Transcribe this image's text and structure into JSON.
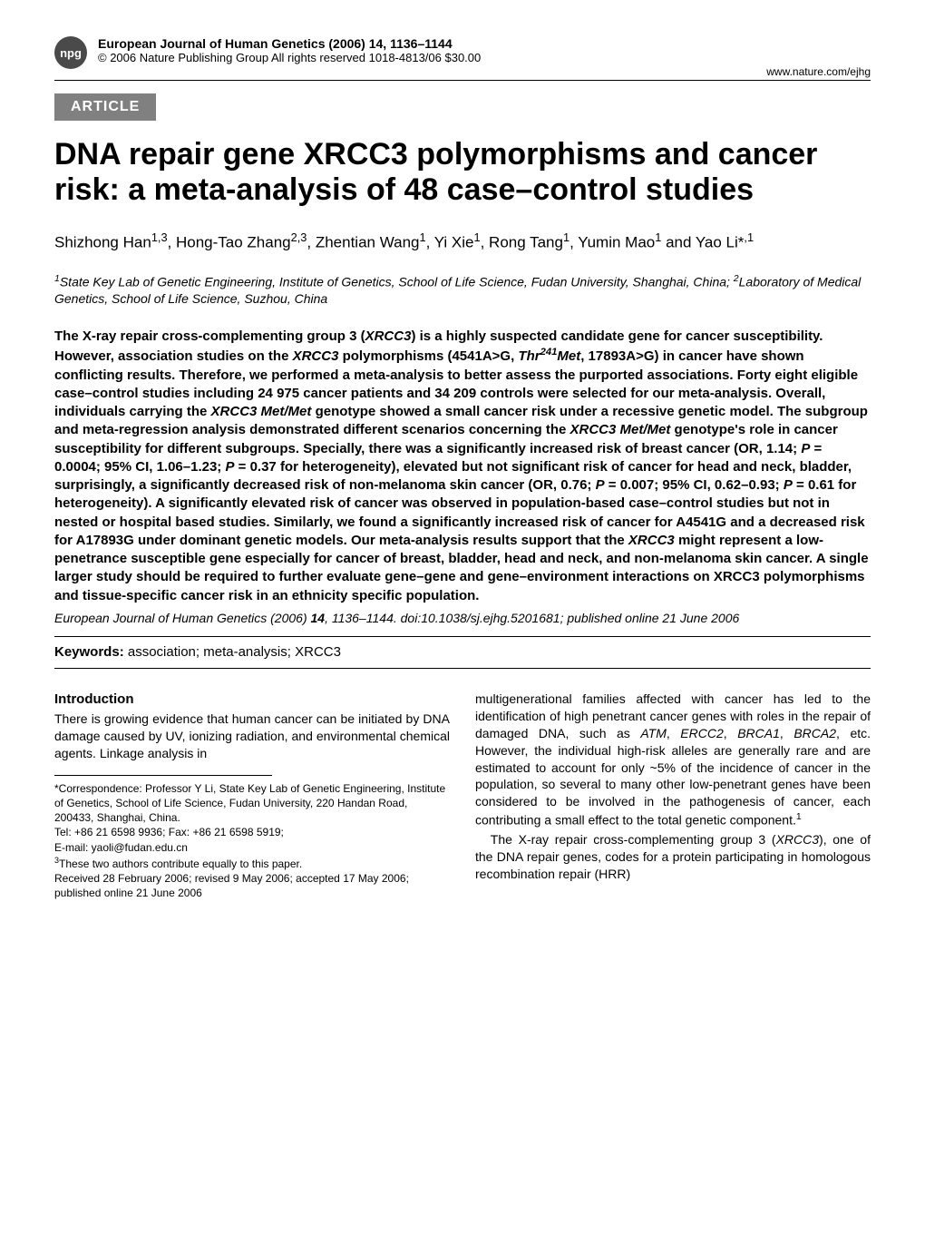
{
  "header": {
    "badge": "npg",
    "journal_line1": "European Journal of Human Genetics (2006) 14, 1136–1144",
    "journal_line2": "© 2006 Nature Publishing Group   All rights reserved 1018-4813/06 $30.00",
    "url": "www.nature.com/ejhg"
  },
  "article_tag": "ARTICLE",
  "title": "DNA repair gene XRCC3 polymorphisms and cancer risk: a meta-analysis of 48 case–control studies",
  "authors_html": "Shizhong Han<sup>1,3</sup>, Hong-Tao Zhang<sup>2,3</sup>, Zhentian Wang<sup>1</sup>, Yi Xie<sup>1</sup>, Rong Tang<sup>1</sup>, Yumin Mao<sup>1</sup> and Yao Li*<sup>,1</sup>",
  "affiliations_html": "<sup>1</sup>State Key Lab of Genetic Engineering, Institute of Genetics, School of Life Science, Fudan University, Shanghai, China; <sup>2</sup>Laboratory of Medical Genetics, School of Life Science, Suzhou, China",
  "abstract_html": "The X-ray repair cross-complementing group 3 (<i>XRCC3</i>) is a highly suspected candidate gene for cancer susceptibility. However, association studies on the <i>XRCC3</i> polymorphisms (4541A&gt;G, <i>Thr<sup>241</sup>Met</i>, 17893A&gt;G) in cancer have shown conflicting results. Therefore, we performed a meta-analysis to better assess the purported associations. Forty eight eligible case–control studies including 24 975 cancer patients and 34 209 controls were selected for our meta-analysis. Overall, individuals carrying the <i>XRCC3 Met/Met</i> genotype showed a small cancer risk under a recessive genetic model. The subgroup and meta-regression analysis demonstrated different scenarios concerning the <i>XRCC3 Met/Met</i> genotype's role in cancer susceptibility for different subgroups. Specially, there was a significantly increased risk of breast cancer (OR, 1.14; <i>P</i> = 0.0004; 95% CI, 1.06–1.23; <i>P</i> = 0.37 for heterogeneity), elevated but not significant risk of cancer for head and neck, bladder, surprisingly, a significantly decreased risk of non-melanoma skin cancer (OR, 0.76; <i>P</i> = 0.007; 95% CI, 0.62–0.93; <i>P</i> = 0.61 for heterogeneity). A significantly elevated risk of cancer was observed in population-based case–control studies but not in nested or hospital based studies. Similarly, we found a significantly increased risk of cancer for A4541G and a decreased risk for A17893G under dominant genetic models. Our meta-analysis results support that the <i>XRCC3</i> might represent a low-penetrance susceptible gene especially for cancer of breast, bladder, head and neck, and non-melanoma skin cancer. A single larger study should be required to further evaluate gene–gene and gene–environment interactions on XRCC3 polymorphisms and tissue-specific cancer risk in an ethnicity specific population.",
  "citation_html": "<i>European Journal of Human Genetics</i> (2006) <b>14</b>, 1136–1144. doi:10.1038/sj.ejhg.5201681; published online 21 June 2006",
  "keywords": {
    "label": "Keywords:",
    "text": " association; meta-analysis; XRCC3"
  },
  "body": {
    "intro_heading": "Introduction",
    "left_col": "There is growing evidence that human cancer can be initiated by DNA damage caused by UV, ionizing radiation, and environmental chemical agents. Linkage analysis in",
    "right_col_html": "multigenerational families affected with cancer has led to the identification of high penetrant cancer genes with roles in the repair of damaged DNA, such as <i>ATM</i>, <i>ERCC2</i>, <i>BRCA1</i>, <i>BRCA2</i>, etc. However, the individual high-risk alleles are generally rare and are estimated to account for only ~5% of the incidence of cancer in the population, so several to many other low-penetrant genes have been considered to be involved in the pathogenesis of cancer, each contributing a small effect to the total genetic component.<sup>1</sup>",
    "right_col_p2_html": "The X-ray repair cross-complementing group 3 (<i>XRCC3</i>), one of the DNA repair genes, codes for a protein participating in homologous recombination repair (HRR)"
  },
  "footnotes": {
    "correspondence": "*Correspondence: Professor Y Li, State Key Lab of Genetic Engineering, Institute of Genetics, School of Life Science, Fudan University, 220 Handan Road, 200433, Shanghai, China.",
    "tel": "Tel: +86 21 6598 9936; Fax: +86 21 6598 5919;",
    "email": "E-mail: yaoli@fudan.edu.cn",
    "equal_html": "<sup>3</sup>These two authors contribute equally to this paper.",
    "received": "Received 28 February 2006; revised 9 May 2006; accepted 17 May 2006; published online 21 June 2006"
  }
}
